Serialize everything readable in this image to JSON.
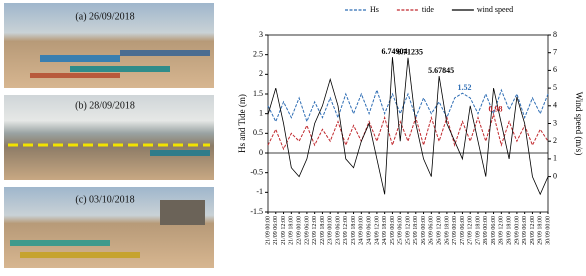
{
  "photos": [
    {
      "label": "(a) 26/09/2018"
    },
    {
      "label": "(b) 28/09/2018"
    },
    {
      "label": "(c) 03/10/2018"
    }
  ],
  "chart_data": {
    "type": "line",
    "y_label": "Hs and Tide (m)",
    "y2_label": "Wind speed (m/s)",
    "categories": [
      "21/09 00:00",
      "21/09 06:00",
      "21/09 12:00",
      "21/09 18:00",
      "22/09 00:00",
      "22/09 06:00",
      "22/09 12:00",
      "22/09 18:00",
      "23/09 00:00",
      "23/09 06:00",
      "23/09 12:00",
      "23/09 18:00",
      "24/09 00:00",
      "24/09 06:00",
      "24/09 12:00",
      "24/09 18:00",
      "25/09 00:00",
      "25/09 06:00",
      "25/09 12:00",
      "25/09 18:00",
      "26/09 00:00",
      "26/09 06:00",
      "26/09 12:00",
      "26/09 18:00",
      "27/09 00:00",
      "27/09 06:00",
      "27/09 12:00",
      "27/09 18:00",
      "28/09 00:00",
      "28/09 06:00",
      "28/09 12:00",
      "28/09 18:00",
      "29/09 00:00",
      "29/09 06:00",
      "29/09 12:00",
      "29/09 18:00",
      "30/09 00:00"
    ],
    "series": [
      {
        "name": "Hs",
        "color": "#2e6db4",
        "dash": true,
        "values": [
          1.2,
          0.8,
          1.3,
          0.9,
          1.4,
          0.8,
          1.3,
          0.9,
          1.4,
          0.9,
          1.5,
          1.0,
          1.5,
          1.0,
          1.6,
          1.0,
          1.5,
          1.0,
          1.5,
          0.9,
          1.4,
          1.0,
          1.3,
          0.9,
          1.4,
          1.52,
          1.4,
          1.0,
          1.5,
          1.0,
          1.6,
          1.1,
          1.5,
          0.9,
          1.4,
          1.0,
          1.5
        ]
      },
      {
        "name": "tide",
        "color": "#c0282d",
        "dash": true,
        "values": [
          0.2,
          0.6,
          0.1,
          0.5,
          0.3,
          0.7,
          0.2,
          0.6,
          0.3,
          0.8,
          0.2,
          0.7,
          0.3,
          0.8,
          0.3,
          0.9,
          0.2,
          0.8,
          0.3,
          0.9,
          0.2,
          0.9,
          0.3,
          0.9,
          0.2,
          0.8,
          0.3,
          0.9,
          0.3,
          0.98,
          0.2,
          0.8,
          0.3,
          0.7,
          0.2,
          0.6,
          0.3
        ]
      },
      {
        "name": "wind speed",
        "color": "#000000",
        "dash": false,
        "axis": "y2",
        "values": [
          3.5,
          5,
          3,
          0.5,
          0,
          1,
          3,
          4,
          5.5,
          4,
          1,
          0.5,
          2,
          3,
          1,
          -1,
          6.74904,
          2,
          6.71235,
          3,
          1,
          0,
          5.67845,
          3,
          2,
          1,
          4,
          2,
          0,
          5,
          3,
          1,
          4.5,
          3,
          0,
          -1,
          0
        ]
      }
    ],
    "annotations": [
      {
        "series": 2,
        "index": 16,
        "label": "6.74904"
      },
      {
        "series": 2,
        "index": 18,
        "label": "6.71235"
      },
      {
        "series": 2,
        "index": 22,
        "label": "5.67845"
      },
      {
        "series": 0,
        "index": 25,
        "label": "1.52"
      },
      {
        "series": 1,
        "index": 29,
        "label": "0.98"
      }
    ],
    "ylim": [
      -1.5,
      3
    ],
    "yticks": [
      -1.5,
      -1,
      -0.5,
      0,
      0.5,
      1,
      1.5,
      2,
      2.5,
      3
    ],
    "y2lim": [
      -2,
      8
    ],
    "y2ticks": [
      0,
      1,
      2,
      3,
      4,
      5,
      6,
      7,
      8
    ],
    "zero_line": true,
    "grid": false
  }
}
